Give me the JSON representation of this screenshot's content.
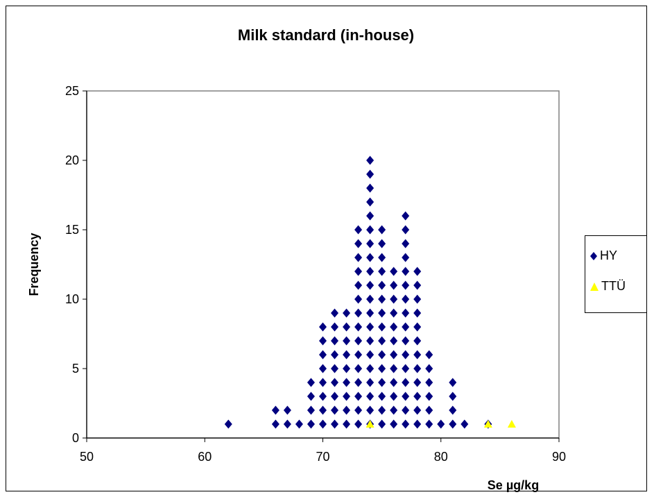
{
  "chart_data": {
    "type": "scatter",
    "title": "Milk standard (in-house)",
    "xlabel": "Se µg/kg",
    "ylabel": "Frequency",
    "xlim": [
      50,
      90
    ],
    "ylim": [
      0,
      25
    ],
    "xticks": [
      50,
      60,
      70,
      80,
      90
    ],
    "yticks": [
      0,
      5,
      10,
      15,
      20,
      25
    ],
    "grid": false,
    "legend_position": "right",
    "series": [
      {
        "name": "HY",
        "marker": "diamond",
        "color": "#000080",
        "columns": [
          [
            62,
            1
          ],
          [
            66,
            2
          ],
          [
            67,
            2
          ],
          [
            68,
            1
          ],
          [
            69,
            4
          ],
          [
            70,
            8
          ],
          [
            71,
            9
          ],
          [
            72,
            9
          ],
          [
            73,
            15
          ],
          [
            74,
            20
          ],
          [
            75,
            15
          ],
          [
            76,
            12
          ],
          [
            77,
            16
          ],
          [
            78,
            12
          ],
          [
            79,
            6
          ],
          [
            80,
            1
          ],
          [
            81,
            4
          ],
          [
            82,
            1
          ],
          [
            84,
            1
          ]
        ]
      },
      {
        "name": "TTÜ",
        "marker": "triangle",
        "color": "#ffff00",
        "points": [
          [
            74,
            1
          ],
          [
            84,
            1
          ],
          [
            86,
            1
          ]
        ]
      }
    ]
  }
}
